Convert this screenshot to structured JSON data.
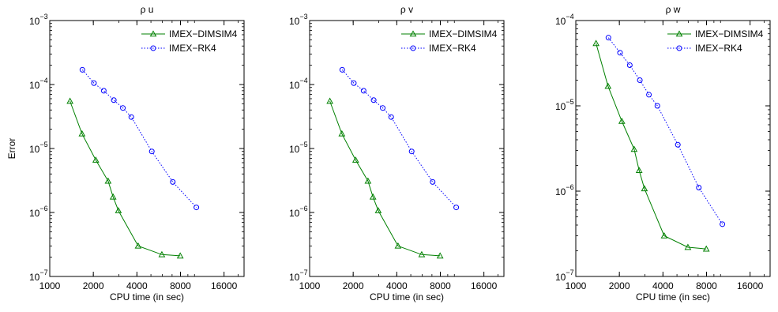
{
  "figure": {
    "panels": [
      {
        "title": "ρ u",
        "xlabel": "CPU time (in sec)",
        "ylabel": "Error",
        "show_ylabel": true
      },
      {
        "title": "ρ v",
        "xlabel": "CPU time (in sec)",
        "ylabel": "",
        "show_ylabel": false
      },
      {
        "title": "ρ w",
        "xlabel": "CPU time (in sec)",
        "ylabel": "",
        "show_ylabel": false
      }
    ]
  },
  "chart_data": [
    {
      "type": "line",
      "title": "ρ u",
      "xlabel": "CPU time (in sec)",
      "ylabel": "Error",
      "xscale": "log",
      "yscale": "log",
      "xlim": [
        1000,
        22000
      ],
      "ylim_exp": [
        -7,
        -3
      ],
      "xticks": [
        1000,
        2000,
        4000,
        8000,
        16000
      ],
      "xtick_labels": [
        "1000",
        "2000",
        "4000",
        "8000",
        "16000"
      ],
      "yticks_exp": [
        -7,
        -6,
        -5,
        -4,
        -3
      ],
      "ytick_base": "10",
      "legend_position": "top-right",
      "grid": false,
      "series": [
        {
          "name": "IMEX−DIMSIM4",
          "color": "#008000",
          "line": "solid",
          "marker": "triangle",
          "x": [
            1380,
            1670,
            2080,
            2530,
            2740,
            2980,
            4080,
            5950,
            7970
          ],
          "y": [
            5.5e-05,
            1.7e-05,
            6.6e-06,
            3.1e-06,
            1.75e-06,
            1.07e-06,
            3e-07,
            2.2e-07,
            2.1e-07
          ]
        },
        {
          "name": "IMEX−RK4",
          "color": "#0000ff",
          "line": "dotted",
          "marker": "circle",
          "x": [
            1680,
            2020,
            2360,
            2770,
            3200,
            3660,
            5070,
            7080,
            10300
          ],
          "y": [
            0.00017,
            0.000105,
            8e-05,
            5.7e-05,
            4.3e-05,
            3.1e-05,
            9e-06,
            3e-06,
            1.2e-06
          ]
        }
      ]
    },
    {
      "type": "line",
      "title": "ρ v",
      "xlabel": "CPU time (in sec)",
      "ylabel": "",
      "xscale": "log",
      "yscale": "log",
      "xlim": [
        1000,
        22000
      ],
      "ylim_exp": [
        -7,
        -3
      ],
      "xticks": [
        1000,
        2000,
        4000,
        8000,
        16000
      ],
      "xtick_labels": [
        "1000",
        "2000",
        "4000",
        "8000",
        "16000"
      ],
      "yticks_exp": [
        -7,
        -6,
        -5,
        -4,
        -3
      ],
      "ytick_base": "10",
      "legend_position": "top-right",
      "grid": false,
      "series": [
        {
          "name": "IMEX−DIMSIM4",
          "color": "#008000",
          "line": "solid",
          "marker": "triangle",
          "x": [
            1380,
            1670,
            2080,
            2530,
            2740,
            2980,
            4080,
            5950,
            7970
          ],
          "y": [
            5.5e-05,
            1.7e-05,
            6.6e-06,
            3.1e-06,
            1.75e-06,
            1.07e-06,
            3e-07,
            2.2e-07,
            2.1e-07
          ]
        },
        {
          "name": "IMEX−RK4",
          "color": "#0000ff",
          "line": "dotted",
          "marker": "circle",
          "x": [
            1680,
            2020,
            2360,
            2770,
            3200,
            3660,
            5070,
            7080,
            10300
          ],
          "y": [
            0.00017,
            0.000105,
            8e-05,
            5.7e-05,
            4.3e-05,
            3.1e-05,
            9e-06,
            3e-06,
            1.2e-06
          ]
        }
      ]
    },
    {
      "type": "line",
      "title": "ρ w",
      "xlabel": "CPU time (in sec)",
      "ylabel": "",
      "xscale": "log",
      "yscale": "log",
      "xlim": [
        1000,
        22000
      ],
      "ylim_exp": [
        -7,
        -4
      ],
      "xticks": [
        1000,
        2000,
        4000,
        8000,
        16000
      ],
      "xtick_labels": [
        "1000",
        "2000",
        "4000",
        "8000",
        "16000"
      ],
      "yticks_exp": [
        -7,
        -6,
        -5,
        -4
      ],
      "ytick_base": "10",
      "legend_position": "top-right",
      "grid": false,
      "series": [
        {
          "name": "IMEX−DIMSIM4",
          "color": "#008000",
          "line": "solid",
          "marker": "triangle",
          "x": [
            1380,
            1670,
            2080,
            2530,
            2740,
            2980,
            4080,
            5950,
            7970
          ],
          "y": [
            5.4e-05,
            1.7e-05,
            6.6e-06,
            3.1e-06,
            1.75e-06,
            1.07e-06,
            3e-07,
            2.2e-07,
            2.1e-07
          ]
        },
        {
          "name": "IMEX−RK4",
          "color": "#0000ff",
          "line": "dotted",
          "marker": "circle",
          "x": [
            1680,
            2020,
            2360,
            2770,
            3200,
            3660,
            5070,
            7080,
            10300
          ],
          "y": [
            6.3e-05,
            4.2e-05,
            3e-05,
            2e-05,
            1.35e-05,
            1e-05,
            3.5e-06,
            1.1e-06,
            4.1e-07
          ]
        }
      ]
    }
  ]
}
